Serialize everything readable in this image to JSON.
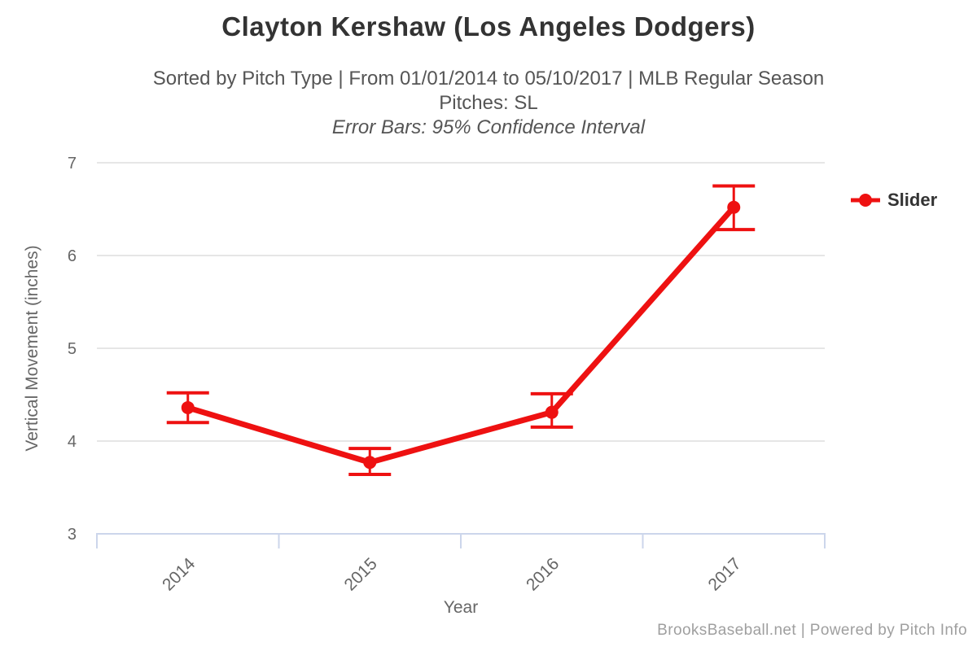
{
  "header": {
    "title": "Clayton Kershaw (Los Angeles Dodgers)",
    "subtitle_line1": "Sorted by Pitch Type | From 01/01/2014 to 05/10/2017 | MLB Regular Season",
    "subtitle_line2": "Pitches: SL",
    "subtitle_line3": "Error Bars: 95% Confidence Interval"
  },
  "chart_data": {
    "type": "line",
    "categories": [
      "2014",
      "2015",
      "2016",
      "2017"
    ],
    "series": [
      {
        "name": "Slider",
        "color": "#ee1111",
        "values": [
          4.36,
          3.77,
          4.31,
          6.52
        ],
        "ci_low": [
          4.2,
          3.64,
          4.15,
          6.28
        ],
        "ci_high": [
          4.52,
          3.92,
          4.51,
          6.75
        ]
      }
    ],
    "error_bars": "95% Confidence Interval",
    "title": "Clayton Kershaw (Los Angeles Dodgers)",
    "xlabel": "Year",
    "ylabel": "Vertical Movement (inches)",
    "ylim": [
      3,
      7
    ],
    "yticks": [
      3,
      4,
      5,
      6,
      7
    ],
    "grid": true,
    "legend_position": "right"
  },
  "legend": {
    "marker": "red-line-dot-icon"
  },
  "footer": {
    "credit": "BrooksBaseball.net | Powered by Pitch Info"
  },
  "colors": {
    "series": "#ee1111",
    "gridline": "#e6e6e6",
    "axis_line": "#ccd6eb",
    "tick_text": "#666666",
    "axis_title_text": "#666666",
    "title_text": "#333333",
    "subtitle_text": "#555555",
    "footer_text": "#9f9f9f"
  }
}
